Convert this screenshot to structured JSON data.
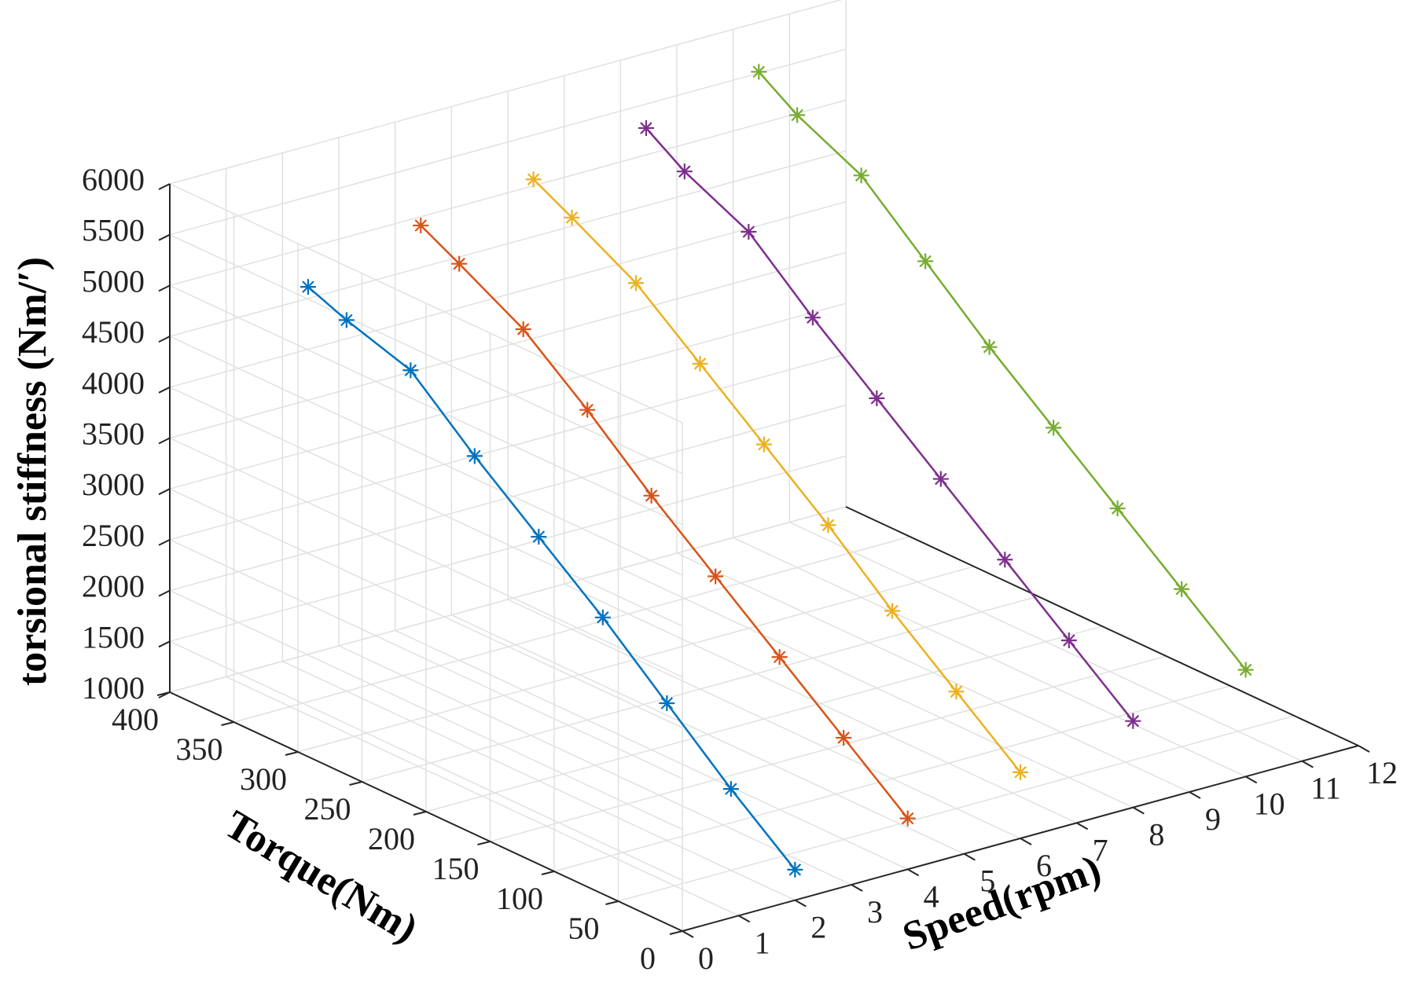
{
  "chart_data": {
    "type": "line3d",
    "xlabel": "Speed(rpm)",
    "ylabel": "Torque(Nm)",
    "zlabel": "torsional stiffness (Nm/′)",
    "xlim": [
      0,
      12
    ],
    "ylim": [
      0,
      400
    ],
    "zlim": [
      1000,
      6000
    ],
    "xticks": [
      "0",
      "1",
      "2",
      "3",
      "4",
      "5",
      "6",
      "7",
      "8",
      "9",
      "10",
      "11",
      "12"
    ],
    "yticks": [
      "0",
      "50",
      "100",
      "150",
      "200",
      "250",
      "300",
      "350",
      "400"
    ],
    "zticks": [
      "1000",
      "1500",
      "2000",
      "2500",
      "3000",
      "3500",
      "4000",
      "4500",
      "5000",
      "5500",
      "6000"
    ],
    "grid": true,
    "marker": "asterisk",
    "series": [
      {
        "speed": 2,
        "color": "#0072BD",
        "torque": [
          0,
          50,
          100,
          150,
          200,
          250,
          300,
          350,
          380
        ],
        "stiffness": [
          1300,
          1800,
          2350,
          2900,
          3400,
          3900,
          4450,
          4650,
          4800
        ]
      },
      {
        "speed": 4,
        "color": "#D95319",
        "torque": [
          0,
          50,
          100,
          150,
          200,
          250,
          300,
          350,
          380
        ],
        "stiffness": [
          1500,
          2000,
          2500,
          3000,
          3500,
          4050,
          4550,
          4900,
          5100
        ]
      },
      {
        "speed": 6,
        "color": "#EDB120",
        "torque": [
          0,
          50,
          100,
          150,
          200,
          250,
          300,
          350,
          380
        ],
        "stiffness": [
          1650,
          2150,
          2650,
          3200,
          3700,
          4200,
          4700,
          5050,
          5250
        ]
      },
      {
        "speed": 8,
        "color": "#7E2F8E",
        "torque": [
          0,
          50,
          100,
          150,
          200,
          250,
          300,
          350,
          380
        ],
        "stiffness": [
          1850,
          2350,
          2850,
          3350,
          3850,
          4350,
          4900,
          5200,
          5450
        ]
      },
      {
        "speed": 10,
        "color": "#77AC30",
        "torque": [
          0,
          50,
          100,
          150,
          200,
          250,
          300,
          350,
          380
        ],
        "stiffness": [
          2050,
          2550,
          3050,
          3550,
          4050,
          4600,
          5150,
          5450,
          5700
        ]
      }
    ]
  }
}
